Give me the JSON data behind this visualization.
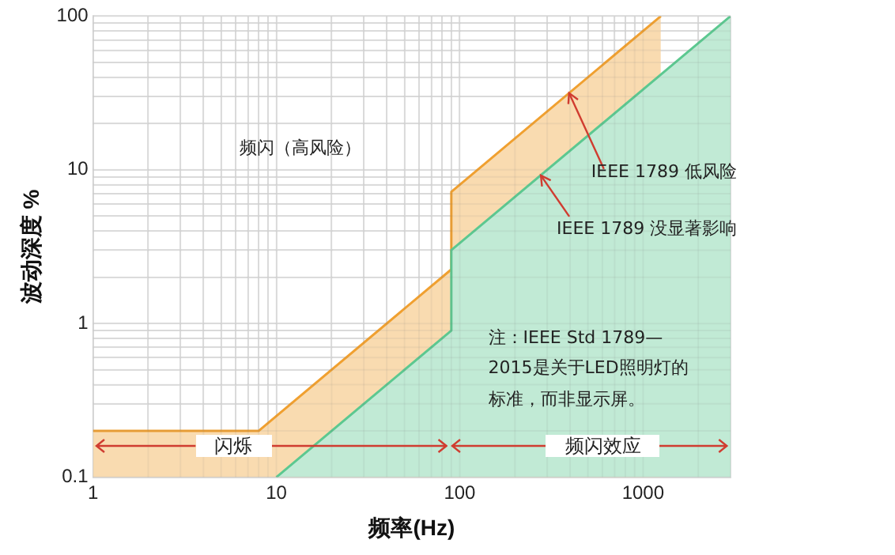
{
  "chart_data": {
    "type": "area",
    "xlabel": "频率(Hz)",
    "ylabel": "波动深度 %",
    "log": "xy",
    "grid": true,
    "legend": false,
    "marker": "none",
    "xlim": [
      1,
      3000
    ],
    "ylim": [
      0.1,
      100
    ],
    "xticks": [
      1,
      {
        "value": 2,
        "label": null
      },
      {
        "value": 3,
        "label": null
      },
      {
        "value": 4,
        "label": null
      },
      {
        "value": 5,
        "label": null
      },
      {
        "value": 6,
        "label": null
      },
      {
        "value": 7,
        "label": null
      },
      {
        "value": 8,
        "label": null
      },
      {
        "value": 9,
        "label": null
      },
      10,
      {
        "value": 20,
        "label": null
      },
      {
        "value": 30,
        "label": null
      },
      {
        "value": 40,
        "label": null
      },
      {
        "value": 50,
        "label": null
      },
      {
        "value": 60,
        "label": null
      },
      {
        "value": 70,
        "label": null
      },
      {
        "value": 80,
        "label": null
      },
      {
        "value": 90,
        "label": null
      },
      100,
      {
        "value": 200,
        "label": null
      },
      {
        "value": 300,
        "label": null
      },
      {
        "value": 400,
        "label": null
      },
      {
        "value": 500,
        "label": null
      },
      {
        "value": 600,
        "label": null
      },
      {
        "value": 700,
        "label": null
      },
      {
        "value": 800,
        "label": null
      },
      {
        "value": 900,
        "label": null
      },
      1000,
      {
        "value": 2000,
        "label": null
      },
      {
        "value": 3000,
        "label": null
      }
    ],
    "yticks": [
      0.1,
      {
        "value": 0.2,
        "label": null
      },
      {
        "value": 0.3,
        "label": null
      },
      {
        "value": 0.4,
        "label": null
      },
      {
        "value": 0.5,
        "label": null
      },
      {
        "value": 0.6,
        "label": null
      },
      {
        "value": 0.7,
        "label": null
      },
      {
        "value": 0.8,
        "label": null
      },
      {
        "value": 0.9,
        "label": null
      },
      1,
      {
        "value": 2,
        "label": null
      },
      {
        "value": 3,
        "label": null
      },
      {
        "value": 4,
        "label": null
      },
      {
        "value": 5,
        "label": null
      },
      {
        "value": 6,
        "label": null
      },
      {
        "value": 7,
        "label": null
      },
      {
        "value": 8,
        "label": null
      },
      {
        "value": 9,
        "label": null
      },
      10,
      {
        "value": 20,
        "label": null
      },
      {
        "value": 30,
        "label": null
      },
      {
        "value": 40,
        "label": null
      },
      {
        "value": 50,
        "label": null
      },
      {
        "value": 60,
        "label": null
      },
      {
        "value": 70,
        "label": null
      },
      {
        "value": 80,
        "label": null
      },
      {
        "value": 90,
        "label": null
      },
      100
    ],
    "series": [
      {
        "color": "#f0a030",
        "x": [
          1,
          8,
          90,
          90,
          1250
        ],
        "values": [
          0.2,
          0.2,
          2.25,
          7.2,
          100
        ]
      },
      {
        "color": "#5cc890",
        "x": [
          10,
          90,
          90,
          3000
        ],
        "values": [
          0.1,
          0.9,
          3,
          100
        ]
      }
    ],
    "annotations": [
      "频闪（高风险）",
      {
        "text": "IEEE 1789 低风险",
        "x": 395,
        "y": 31.6
      },
      {
        "text": "IEEE 1789 没显著影响",
        "x": 277,
        "y": 9.2
      },
      "注：IEEE Std 1789—2015是关于LED照明灯的标准，而非显示屏。",
      {
        "text": "闪烁",
        "x": 1,
        "y": 0.16
      },
      {
        "text": "频闪效应",
        "x": 3000,
        "y": 0.16
      }
    ]
  }
}
